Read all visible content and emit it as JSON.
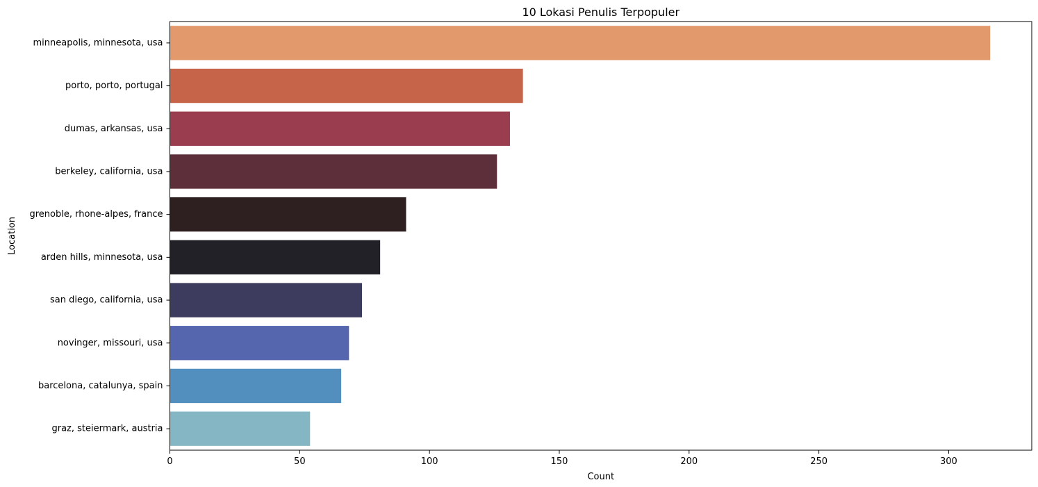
{
  "chart_data": {
    "type": "bar",
    "orientation": "horizontal",
    "title": "10 Lokasi Penulis Terpopuler",
    "xlabel": "Count",
    "ylabel": "Location",
    "xlim": [
      0,
      332
    ],
    "xticks": [
      0,
      50,
      100,
      150,
      200,
      250,
      300
    ],
    "grid": false,
    "categories": [
      "minneapolis, minnesota, usa",
      "porto, porto, portugal",
      "dumas, arkansas, usa",
      "berkeley, california, usa",
      "grenoble, rhone-alpes, france",
      "arden hills, minnesota, usa",
      "san diego, california, usa",
      "novinger, missouri, usa",
      "barcelona, catalunya, spain",
      "graz, steiermark, austria"
    ],
    "values": [
      316,
      136,
      131,
      126,
      91,
      81,
      74,
      69,
      66,
      54
    ],
    "colors": [
      "#e2996b",
      "#c6644a",
      "#993d4f",
      "#5c2f3a",
      "#2e1f21",
      "#212127",
      "#3e3c5e",
      "#5565ae",
      "#528fbe",
      "#85b6c4"
    ]
  }
}
